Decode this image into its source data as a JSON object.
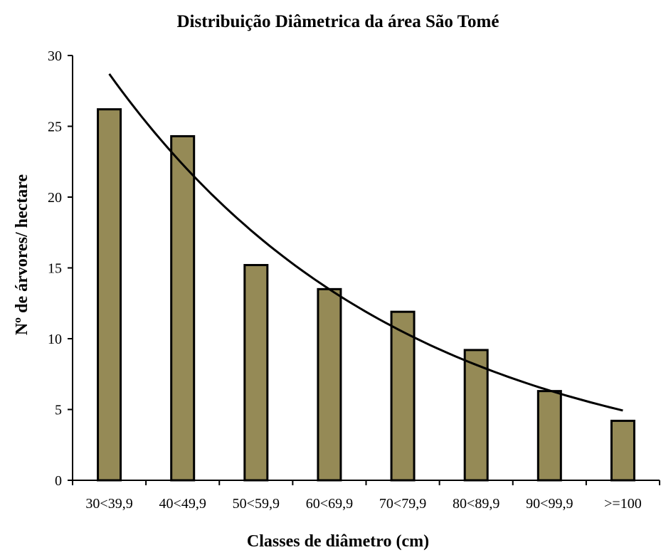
{
  "chart_data": {
    "type": "bar",
    "title": "Distribuição Diâmetrica da área São Tomé",
    "xlabel": "Classes de diâmetro (cm)",
    "ylabel": "Nº de árvores/ hectare",
    "categories": [
      "30<39,9",
      "40<49,9",
      "50<59,9",
      "60<69,9",
      "70<79,9",
      "80<89,9",
      "90<99,9",
      ">=100"
    ],
    "values": [
      26.2,
      24.3,
      15.2,
      13.5,
      11.9,
      9.2,
      6.3,
      4.2
    ],
    "ylim": [
      0,
      30
    ],
    "yticks": [
      0,
      5,
      10,
      15,
      20,
      25,
      30
    ],
    "grid": false,
    "legend": "none",
    "bar_color": "#958a56",
    "trendline": {
      "type": "exponential",
      "points": [
        {
          "x": 1,
          "y": 28.6
        },
        {
          "x": 2,
          "y": 22.2
        },
        {
          "x": 3,
          "y": 17.3
        },
        {
          "x": 4,
          "y": 13.6
        },
        {
          "x": 5,
          "y": 10.6
        },
        {
          "x": 6,
          "y": 8.2
        },
        {
          "x": 7,
          "y": 6.3
        },
        {
          "x": 8,
          "y": 4.9
        }
      ]
    }
  }
}
